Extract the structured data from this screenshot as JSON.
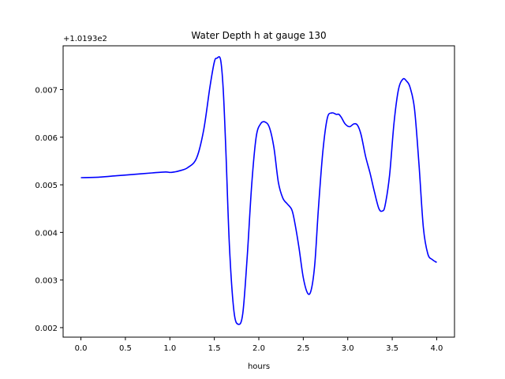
{
  "chart_data": {
    "type": "line",
    "title": "Water Depth h at gauge 130",
    "xlabel": "hours",
    "ylabel": "",
    "offset_label": "+1.0193e2",
    "xlim": [
      -0.2,
      4.2
    ],
    "ylim": [
      0.0018,
      0.00792
    ],
    "x_ticks": [
      0.0,
      0.5,
      1.0,
      1.5,
      2.0,
      2.5,
      3.0,
      3.5,
      4.0
    ],
    "x_tick_labels": [
      "0.0",
      "0.5",
      "1.0",
      "1.5",
      "2.0",
      "2.5",
      "3.0",
      "3.5",
      "4.0"
    ],
    "y_ticks": [
      0.002,
      0.003,
      0.004,
      0.005,
      0.006,
      0.007
    ],
    "y_tick_labels": [
      "0.002",
      "0.003",
      "0.004",
      "0.005",
      "0.006",
      "0.007"
    ],
    "grid": false,
    "series": [
      {
        "color": "#0000ff",
        "x": [
          0.0,
          0.2,
          0.4,
          0.6,
          0.8,
          0.95,
          1.0,
          1.05,
          1.1,
          1.2,
          1.3,
          1.38,
          1.45,
          1.5,
          1.53,
          1.57,
          1.6,
          1.63,
          1.67,
          1.72,
          1.77,
          1.82,
          1.87,
          1.92,
          1.97,
          2.02,
          2.07,
          2.12,
          2.17,
          2.22,
          2.27,
          2.32,
          2.37,
          2.4,
          2.45,
          2.5,
          2.55,
          2.59,
          2.63,
          2.67,
          2.72,
          2.77,
          2.82,
          2.87,
          2.9,
          2.93,
          2.97,
          3.02,
          3.07,
          3.11,
          3.15,
          3.2,
          3.25,
          3.3,
          3.35,
          3.39,
          3.42,
          3.47,
          3.52,
          3.57,
          3.62,
          3.66,
          3.7,
          3.75,
          3.8,
          3.85,
          3.9,
          3.95,
          4.0
        ],
        "values": [
          0.00515,
          0.00516,
          0.00519,
          0.00522,
          0.00525,
          0.00527,
          0.00526,
          0.00527,
          0.00529,
          0.00536,
          0.00556,
          0.00615,
          0.00705,
          0.00758,
          0.00766,
          0.00763,
          0.007,
          0.0057,
          0.0037,
          0.00235,
          0.00207,
          0.0023,
          0.0035,
          0.005,
          0.006,
          0.00628,
          0.00632,
          0.0062,
          0.00578,
          0.00505,
          0.00472,
          0.0046,
          0.00448,
          0.00425,
          0.0037,
          0.00305,
          0.00272,
          0.0028,
          0.00335,
          0.0045,
          0.0057,
          0.0064,
          0.00651,
          0.00648,
          0.00648,
          0.00641,
          0.00628,
          0.00622,
          0.00628,
          0.00625,
          0.00605,
          0.0056,
          0.00525,
          0.00485,
          0.0045,
          0.00445,
          0.00457,
          0.0052,
          0.0063,
          0.007,
          0.00722,
          0.00718,
          0.00705,
          0.0066,
          0.00545,
          0.0041,
          0.00355,
          0.00343,
          0.00337
        ]
      }
    ]
  }
}
